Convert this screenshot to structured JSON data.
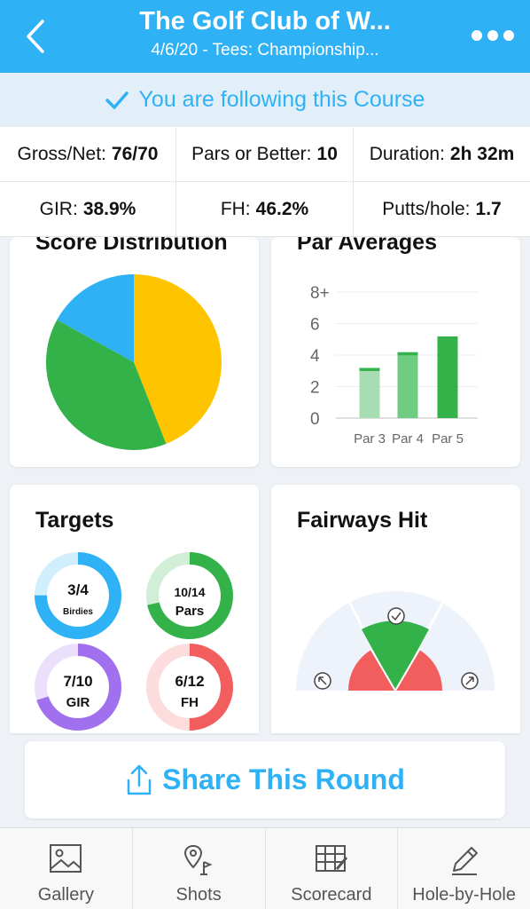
{
  "header": {
    "title": "The Golf Club of W...",
    "subtitle": "4/6/20 - Tees: Championship..."
  },
  "follow": {
    "text": "You are following this Course",
    "icon": "checkmark-icon"
  },
  "stats": {
    "gross_net_label": "Gross/Net:",
    "gross_net_value": "76/70",
    "pars_or_better_label": "Pars or Better:",
    "pars_or_better_value": "10",
    "duration_label": "Duration:",
    "duration_value": "2h 32m",
    "gir_label": "GIR:",
    "gir_value": "38.9%",
    "fh_label": "FH:",
    "fh_value": "46.2%",
    "putts_label": "Putts/hole:",
    "putts_value": "1.7"
  },
  "score_distribution": {
    "title": "Score Distribution",
    "slices": [
      {
        "fraction": 0.44,
        "color": "#ffc400"
      },
      {
        "fraction": 0.39,
        "color": "#34b24a"
      },
      {
        "fraction": 0.17,
        "color": "#2fb1f5"
      }
    ]
  },
  "par_averages": {
    "title": "Par Averages",
    "y_ticks": [
      "8+",
      "6",
      "4",
      "2",
      "0"
    ],
    "categories": [
      "Par 3",
      "Par 4",
      "Par 5"
    ],
    "averages": [
      3.1,
      4.1,
      5.1
    ],
    "par_values": [
      3,
      4,
      5
    ],
    "y_max": 8
  },
  "targets": {
    "title": "Targets",
    "items": [
      {
        "value": "3/4",
        "label": "Birdies",
        "fraction": 0.75,
        "color": "#2fb1f5"
      },
      {
        "value": "10/14",
        "label": "Pars",
        "fraction": 0.714,
        "color": "#34b24a"
      },
      {
        "value": "7/10",
        "label": "GIR",
        "fraction": 0.7,
        "color": "#a070ee"
      },
      {
        "value": "6/12",
        "label": "FH",
        "fraction": 0.5,
        "color": "#f25e5e"
      }
    ]
  },
  "fairways_hit": {
    "title": "Fairways Hit",
    "left_icon": "arrow-up-left-icon",
    "center_icon": "checkmark-circle-icon",
    "right_icon": "arrow-up-right-icon",
    "miss_color": "#f25e5e",
    "hit_color": "#34b24a"
  },
  "share": {
    "label": "Share This Round",
    "icon": "share-icon"
  },
  "tabs": [
    {
      "label": "Gallery",
      "icon": "gallery-icon"
    },
    {
      "label": "Shots",
      "icon": "shots-icon"
    },
    {
      "label": "Scorecard",
      "icon": "scorecard-icon"
    },
    {
      "label": "Hole-by-Hole",
      "icon": "pencil-icon"
    }
  ],
  "colors": {
    "accent": "#2fb1f5",
    "green": "#34b24a",
    "light_green": "#a8dcb2",
    "mid_green": "#6fcc83"
  }
}
